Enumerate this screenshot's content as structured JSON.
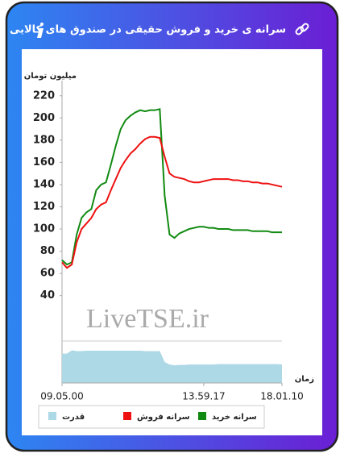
{
  "header": {
    "title": "سرانه ی خرید و فروش حقیقی در صندوق های کالایی"
  },
  "chart_data": {
    "type": "line",
    "y_label": "میلیون تومان",
    "x_label": "زمان",
    "watermark": "LiveTSE.ir",
    "categories": [
      "09.05.00",
      null,
      null,
      null,
      null,
      null,
      null,
      null,
      null,
      null,
      null,
      null,
      null,
      null,
      null,
      null,
      null,
      null,
      null,
      null,
      null,
      null,
      null,
      null,
      null,
      null,
      null,
      null,
      null,
      "13.59.17",
      null,
      null,
      null,
      null,
      null,
      null,
      null,
      null,
      null,
      null,
      null,
      null,
      null,
      null,
      null,
      "18.01.10"
    ],
    "ylim": [
      10,
      230
    ],
    "yticks": [
      40,
      60,
      80,
      100,
      120,
      140,
      160,
      180,
      200,
      220
    ],
    "y2lim": [
      0,
      100
    ],
    "series": [
      {
        "name": "سرانه خرید",
        "color": "#118a11",
        "values": [
          72,
          68,
          70,
          95,
          110,
          115,
          118,
          135,
          140,
          142,
          158,
          175,
          190,
          198,
          202,
          205,
          207,
          206,
          207,
          207,
          208,
          130,
          95,
          92,
          96,
          98,
          100,
          101,
          102,
          102,
          101,
          101,
          100,
          100,
          100,
          99,
          99,
          99,
          99,
          98,
          98,
          98,
          98,
          97,
          97,
          97
        ]
      },
      {
        "name": "سرانه فروش",
        "color": "#ee1111",
        "values": [
          70,
          65,
          68,
          88,
          100,
          105,
          110,
          118,
          122,
          124,
          135,
          145,
          155,
          162,
          168,
          172,
          177,
          181,
          183,
          183,
          182,
          165,
          150,
          147,
          146,
          145,
          143,
          142,
          142,
          143,
          144,
          145,
          145,
          145,
          145,
          144,
          144,
          143,
          143,
          142,
          142,
          141,
          141,
          140,
          139,
          138
        ]
      },
      {
        "name": "قدرت",
        "color": "#add8e6",
        "type": "area",
        "axis": "y2",
        "values": [
          70,
          70,
          78,
          76,
          76,
          77,
          77,
          77,
          77,
          77,
          77,
          77,
          77,
          77,
          77,
          77,
          77,
          76,
          76,
          76,
          76,
          50,
          44,
          42,
          43,
          43,
          44,
          44,
          44,
          44,
          44,
          44,
          45,
          45,
          45,
          45,
          45,
          45,
          45,
          45,
          45,
          45,
          45,
          45,
          45,
          44
        ]
      }
    ]
  }
}
